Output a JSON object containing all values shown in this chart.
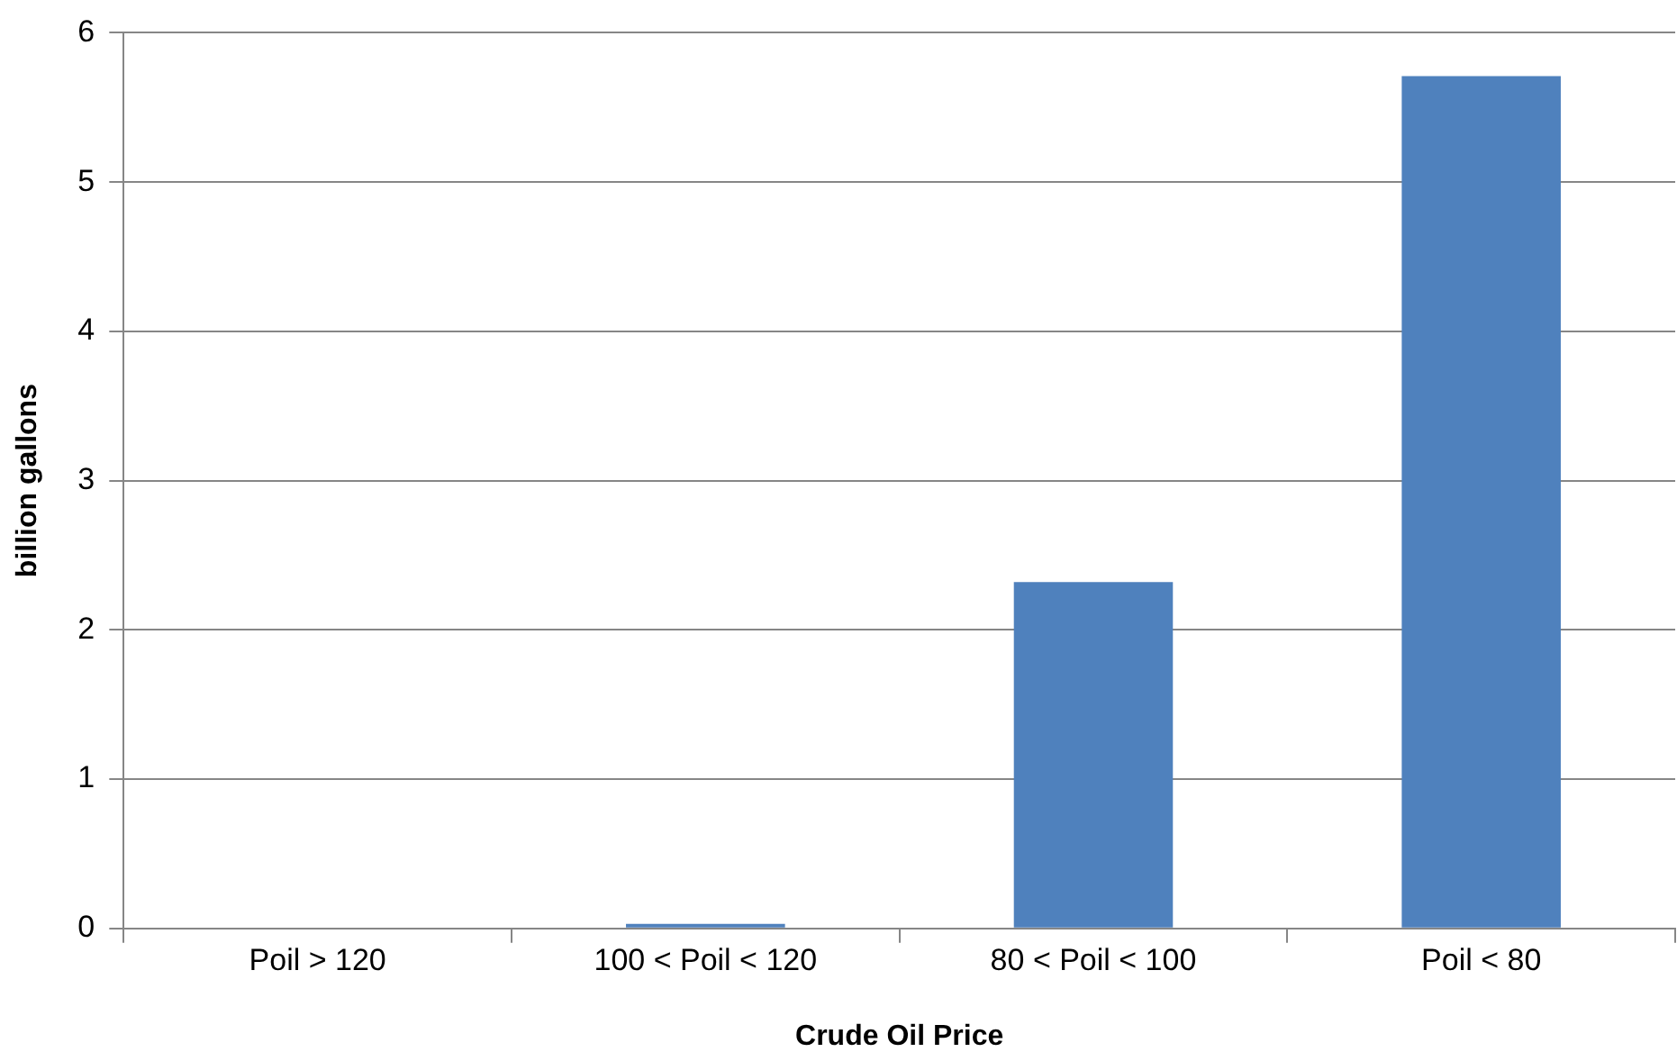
{
  "chart_data": {
    "type": "bar",
    "xlabel": "Crude Oil Price",
    "ylabel": "billion gallons",
    "categories": [
      "Poil > 120",
      "100 < Poil < 120",
      "80 < Poil < 100",
      "Poil < 80"
    ],
    "values": [
      0,
      0.03,
      2.32,
      5.71
    ],
    "color": "#4f81bd",
    "ylim": [
      0,
      6
    ],
    "yticks": [
      0,
      1,
      2,
      3,
      4,
      5,
      6
    ],
    "grid": "y"
  }
}
